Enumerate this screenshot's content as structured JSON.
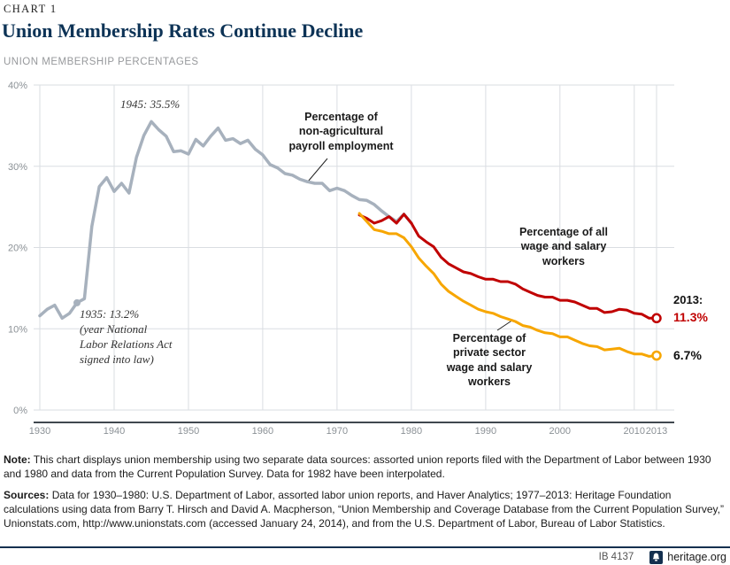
{
  "header": {
    "kicker": "CHART 1",
    "title": "Union Membership Rates Continue Decline",
    "subtitle": "UNION MEMBERSHIP PERCENTAGES"
  },
  "chart_data": {
    "type": "line",
    "title": "Union Membership Rates Continue Decline",
    "ylabel": "Union membership percentage",
    "ylim": [
      0,
      40
    ],
    "x_range": [
      1930,
      2013
    ],
    "grid": true,
    "legend_position": "inline-annotations",
    "y_ticks": [
      {
        "value": 40,
        "label": "40%"
      },
      {
        "value": 30,
        "label": "30%"
      },
      {
        "value": 20,
        "label": "20%"
      },
      {
        "value": 10,
        "label": "10%"
      },
      {
        "value": 0,
        "label": "0%"
      }
    ],
    "x_ticks": [
      {
        "value": 1930,
        "label": "1930"
      },
      {
        "value": 1940,
        "label": "1940"
      },
      {
        "value": 1950,
        "label": "1950"
      },
      {
        "value": 1960,
        "label": "1960"
      },
      {
        "value": 1970,
        "label": "1970"
      },
      {
        "value": 1980,
        "label": "1980"
      },
      {
        "value": 1990,
        "label": "1990"
      },
      {
        "value": 2000,
        "label": "2000"
      },
      {
        "value": 2010,
        "label": "2010"
      },
      {
        "value": 2013,
        "label": "2013"
      }
    ],
    "series": [
      {
        "id": "nonag",
        "name": "Percentage of non-agricultural payroll employment",
        "color": "#a7b1bd",
        "start_year": 1930,
        "values": [
          11.6,
          12.4,
          12.9,
          11.3,
          11.9,
          13.2,
          13.7,
          22.6,
          27.5,
          28.6,
          26.9,
          27.9,
          26.7,
          31.1,
          33.8,
          35.5,
          34.5,
          33.7,
          31.8,
          31.9,
          31.5,
          33.3,
          32.5,
          33.7,
          34.7,
          33.2,
          33.4,
          32.8,
          33.2,
          32.1,
          31.4,
          30.2,
          29.8,
          29.1,
          28.9,
          28.4,
          28.1,
          27.9,
          27.9,
          27.0,
          27.3,
          27.0,
          26.4,
          25.9,
          25.8,
          25.3,
          24.5,
          23.8,
          23.2,
          24.1,
          23.0
        ],
        "marker_point": {
          "year": 1935,
          "value": 13.2
        },
        "peak_point": {
          "year": 1945,
          "value": 35.5
        }
      },
      {
        "id": "all-workers",
        "name": "Percentage of all wage and salary workers",
        "color": "#c00000",
        "start_year": 1973,
        "values": [
          24.0,
          23.6,
          23.0,
          23.3,
          23.8,
          23.0,
          24.1,
          23.0,
          21.4,
          20.7,
          20.1,
          18.8,
          18.0,
          17.5,
          17.0,
          16.8,
          16.4,
          16.1,
          16.1,
          15.8,
          15.8,
          15.5,
          14.9,
          14.5,
          14.1,
          13.9,
          13.9,
          13.5,
          13.5,
          13.3,
          12.9,
          12.5,
          12.5,
          12.0,
          12.1,
          12.4,
          12.3,
          11.9,
          11.8,
          11.3,
          11.3
        ],
        "end_marker": true,
        "end_label": "11.3%"
      },
      {
        "id": "private-workers",
        "name": "Percentage of private sector wage and salary workers",
        "color": "#f7a600",
        "start_year": 1973,
        "values": [
          24.2,
          23.2,
          22.2,
          22.0,
          21.7,
          21.7,
          21.2,
          20.1,
          18.7,
          17.7,
          16.8,
          15.5,
          14.6,
          14.0,
          13.4,
          12.9,
          12.4,
          12.1,
          11.9,
          11.5,
          11.2,
          10.9,
          10.4,
          10.2,
          9.8,
          9.5,
          9.4,
          9.0,
          9.0,
          8.6,
          8.2,
          7.9,
          7.8,
          7.4,
          7.5,
          7.6,
          7.2,
          6.9,
          6.9,
          6.6,
          6.7
        ],
        "end_marker": true,
        "end_label": "6.7%"
      }
    ],
    "annotations": {
      "peak_1945": "1945: 35.5%",
      "nlra_1935": "1935: 13.2%\n(year National\nLabor Relations Act\nsigned into law)",
      "label_nonag": "Percentage of\nnon-agricultural\npayroll employment",
      "label_all": "Percentage of all\nwage and salary\nworkers",
      "label_private": "Percentage of\nprivate sector\nwage and salary\nworkers",
      "end_year": "2013:",
      "end_value_all": "11.3%",
      "end_value_private": "6.7%"
    }
  },
  "note": {
    "label": "Note:",
    "text": "This chart displays union membership using two separate data sources: assorted union reports filed with the Department of Labor between 1930 and 1980 and data from the Current Population Survey. Data for 1982 have been interpolated."
  },
  "sources": {
    "label": "Sources:",
    "text": "Data for 1930–1980: U.S. Department of Labor, assorted labor union reports, and Haver Analytics; 1977–2013: Heritage Foundation calculations using data from Barry T. Hirsch and David A. Macpherson, “Union Membership and Coverage Database from the Current Population Survey,” Unionstats.com, http://www.unionstats.com (accessed January 24, 2014), and from the U.S. Department of Labor, Bureau of Labor Statistics."
  },
  "footer": {
    "report_id": "IB 4137",
    "site": "heritage.org"
  },
  "colors": {
    "navy": "#0d3356",
    "red": "#c00000",
    "orange": "#f7a600",
    "gray_line": "#a7b1bd",
    "grid": "#dadde2"
  }
}
